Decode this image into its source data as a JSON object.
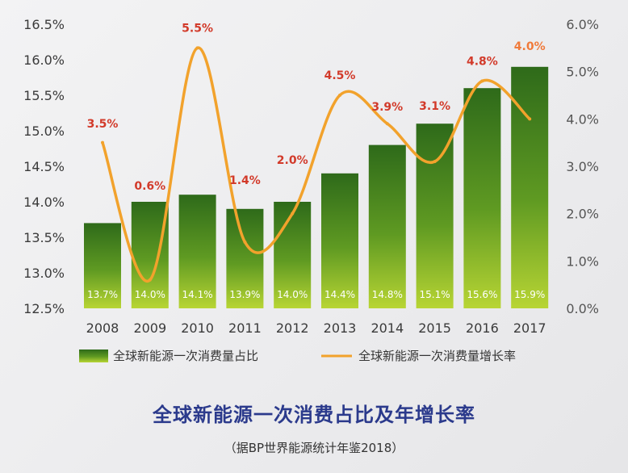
{
  "chart_data": {
    "type": "bar",
    "title": "全球新能源一次消费占比及年增长率",
    "subtitle": "（据BP世界能源统计年鉴2018）",
    "categories": [
      "2008",
      "2009",
      "2010",
      "2011",
      "2012",
      "2013",
      "2014",
      "2015",
      "2016",
      "2017"
    ],
    "series": [
      {
        "name": "全球新能源一次消费量占比",
        "type": "bar",
        "axis": "left",
        "values": [
          13.7,
          14.0,
          14.1,
          13.9,
          14.0,
          14.4,
          14.8,
          15.1,
          15.6,
          15.9
        ],
        "labels": [
          "13.7%",
          "14.0%",
          "14.1%",
          "13.9%",
          "14.0%",
          "14.4%",
          "14.8%",
          "15.1%",
          "15.6%",
          "15.9%"
        ]
      },
      {
        "name": "全球新能源一次消费量增长率",
        "type": "line",
        "axis": "right",
        "values": [
          3.5,
          0.6,
          5.5,
          1.4,
          2.0,
          4.5,
          3.9,
          3.1,
          4.8,
          4.0
        ],
        "labels": [
          "3.5%",
          "0.6%",
          "5.5%",
          "1.4%",
          "2.0%",
          "4.5%",
          "3.9%",
          "3.1%",
          "4.8%",
          "4.0%"
        ]
      }
    ],
    "y_left": {
      "range": [
        12.5,
        16.5
      ],
      "ticks": [
        "16.5%",
        "16.0%",
        "15.5%",
        "15.0%",
        "14.5%",
        "14.0%",
        "13.5%",
        "13.0%",
        "12.5%"
      ],
      "tick_values": [
        16.5,
        16.0,
        15.5,
        15.0,
        14.5,
        14.0,
        13.5,
        13.0,
        12.5
      ]
    },
    "y_right": {
      "range": [
        0,
        6
      ],
      "ticks": [
        "6.0%",
        "5.0%",
        "4.0%",
        "3.0%",
        "2.0%",
        "1.0%",
        "0.0%"
      ],
      "tick_values": [
        6,
        5,
        4,
        3,
        2,
        1,
        0
      ]
    },
    "grid": false,
    "legend_position": "bottom",
    "colors": {
      "bar_top": "#2e6a1a",
      "bar_bottom": "#b8d534",
      "line": "#f2a22c",
      "line_label": "#d23a2a",
      "title": "#2b3a8c"
    }
  }
}
